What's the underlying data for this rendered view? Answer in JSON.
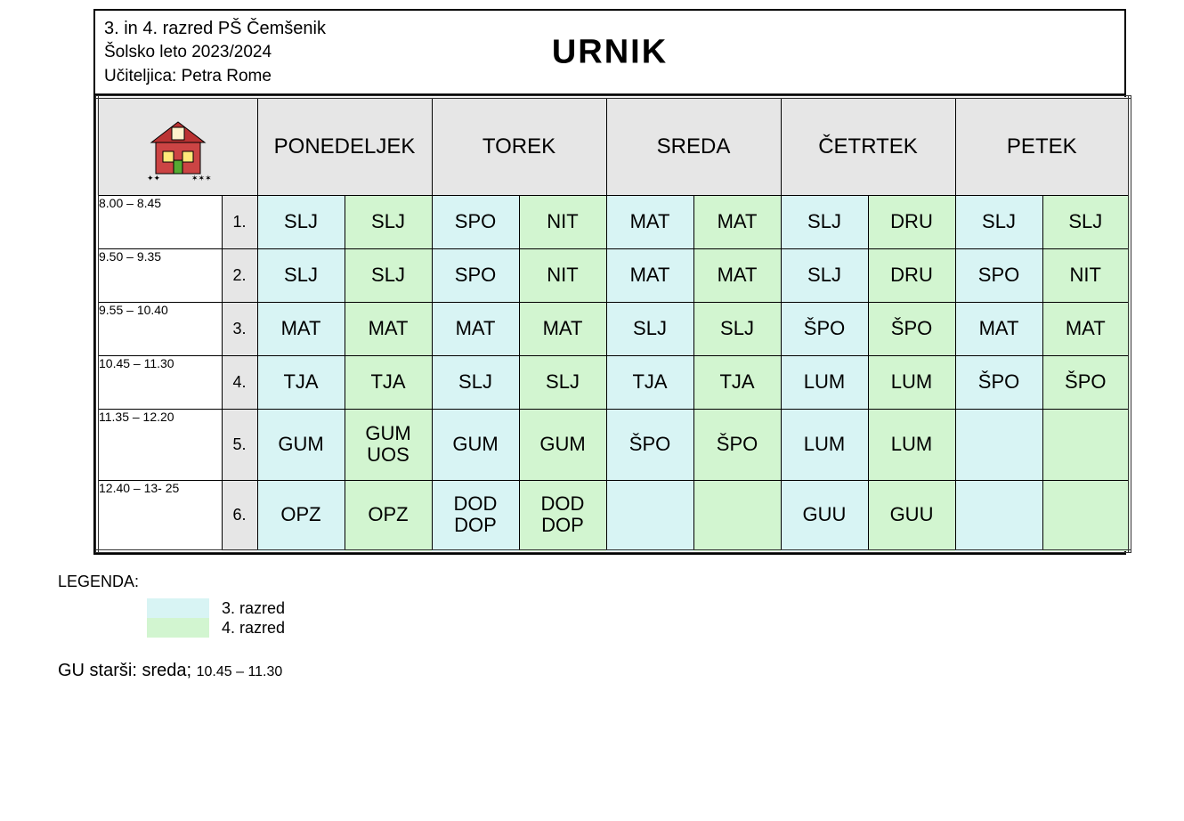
{
  "header": {
    "class_line": "3. in 4. razred PŠ Čemšenik",
    "year_line": "Šolsko leto 2023/2024",
    "teacher_line": "Učiteljica: Petra Rome",
    "title": "URNIK"
  },
  "colors": {
    "grade3": "#d8f4f4",
    "grade4": "#d2f5d0",
    "header_gray": "#e6e6e6"
  },
  "layout": {
    "icon_col_width": 140,
    "period_col_width": 40,
    "subj_col_width": 98
  },
  "days": [
    "PONEDELJEK",
    "TOREK",
    "SREDA",
    "ČETRTEK",
    "PETEK"
  ],
  "periods": [
    {
      "time": "8.00 – 8.45",
      "n": "1."
    },
    {
      "time": "9.50 – 9.35",
      "n": "2."
    },
    {
      "time": "9.55 – 10.40",
      "n": "3."
    },
    {
      "time": "10.45 – 11.30",
      "n": "4."
    },
    {
      "time": "11.35 – 12.20",
      "n": "5."
    },
    {
      "time": "12.40 – 13- 25",
      "n": "6."
    }
  ],
  "rows": [
    [
      [
        "SLJ",
        "SLJ"
      ],
      [
        "SPO",
        "NIT"
      ],
      [
        "MAT",
        "MAT"
      ],
      [
        "SLJ",
        "DRU"
      ],
      [
        "SLJ",
        "SLJ"
      ]
    ],
    [
      [
        "SLJ",
        "SLJ"
      ],
      [
        "SPO",
        "NIT"
      ],
      [
        "MAT",
        "MAT"
      ],
      [
        "SLJ",
        "DRU"
      ],
      [
        "SPO",
        "NIT"
      ]
    ],
    [
      [
        "MAT",
        "MAT"
      ],
      [
        "MAT",
        "MAT"
      ],
      [
        "SLJ",
        "SLJ"
      ],
      [
        "ŠPO",
        "ŠPO"
      ],
      [
        "MAT",
        "MAT"
      ]
    ],
    [
      [
        "TJA",
        "TJA"
      ],
      [
        "SLJ",
        "SLJ"
      ],
      [
        "TJA",
        "TJA"
      ],
      [
        "LUM",
        "LUM"
      ],
      [
        "ŠPO",
        "ŠPO"
      ]
    ],
    [
      [
        "GUM",
        "GUM\nUOS"
      ],
      [
        "GUM",
        "GUM"
      ],
      [
        "ŠPO",
        "ŠPO"
      ],
      [
        "LUM",
        "LUM"
      ],
      [
        "",
        ""
      ]
    ],
    [
      [
        "OPZ",
        "OPZ"
      ],
      [
        "DOD\nDOP",
        "DOD\nDOP"
      ],
      [
        "",
        ""
      ],
      [
        "GUU",
        "GUU"
      ],
      [
        "",
        ""
      ]
    ]
  ],
  "legend": {
    "title": "LEGENDA:",
    "items": [
      {
        "color": "#d8f4f4",
        "label": "3. razred"
      },
      {
        "color": "#d2f5d0",
        "label": "4. razred"
      }
    ]
  },
  "footnote": {
    "prefix": "GU starši: sreda; ",
    "time": "10.45 – 11.30"
  }
}
